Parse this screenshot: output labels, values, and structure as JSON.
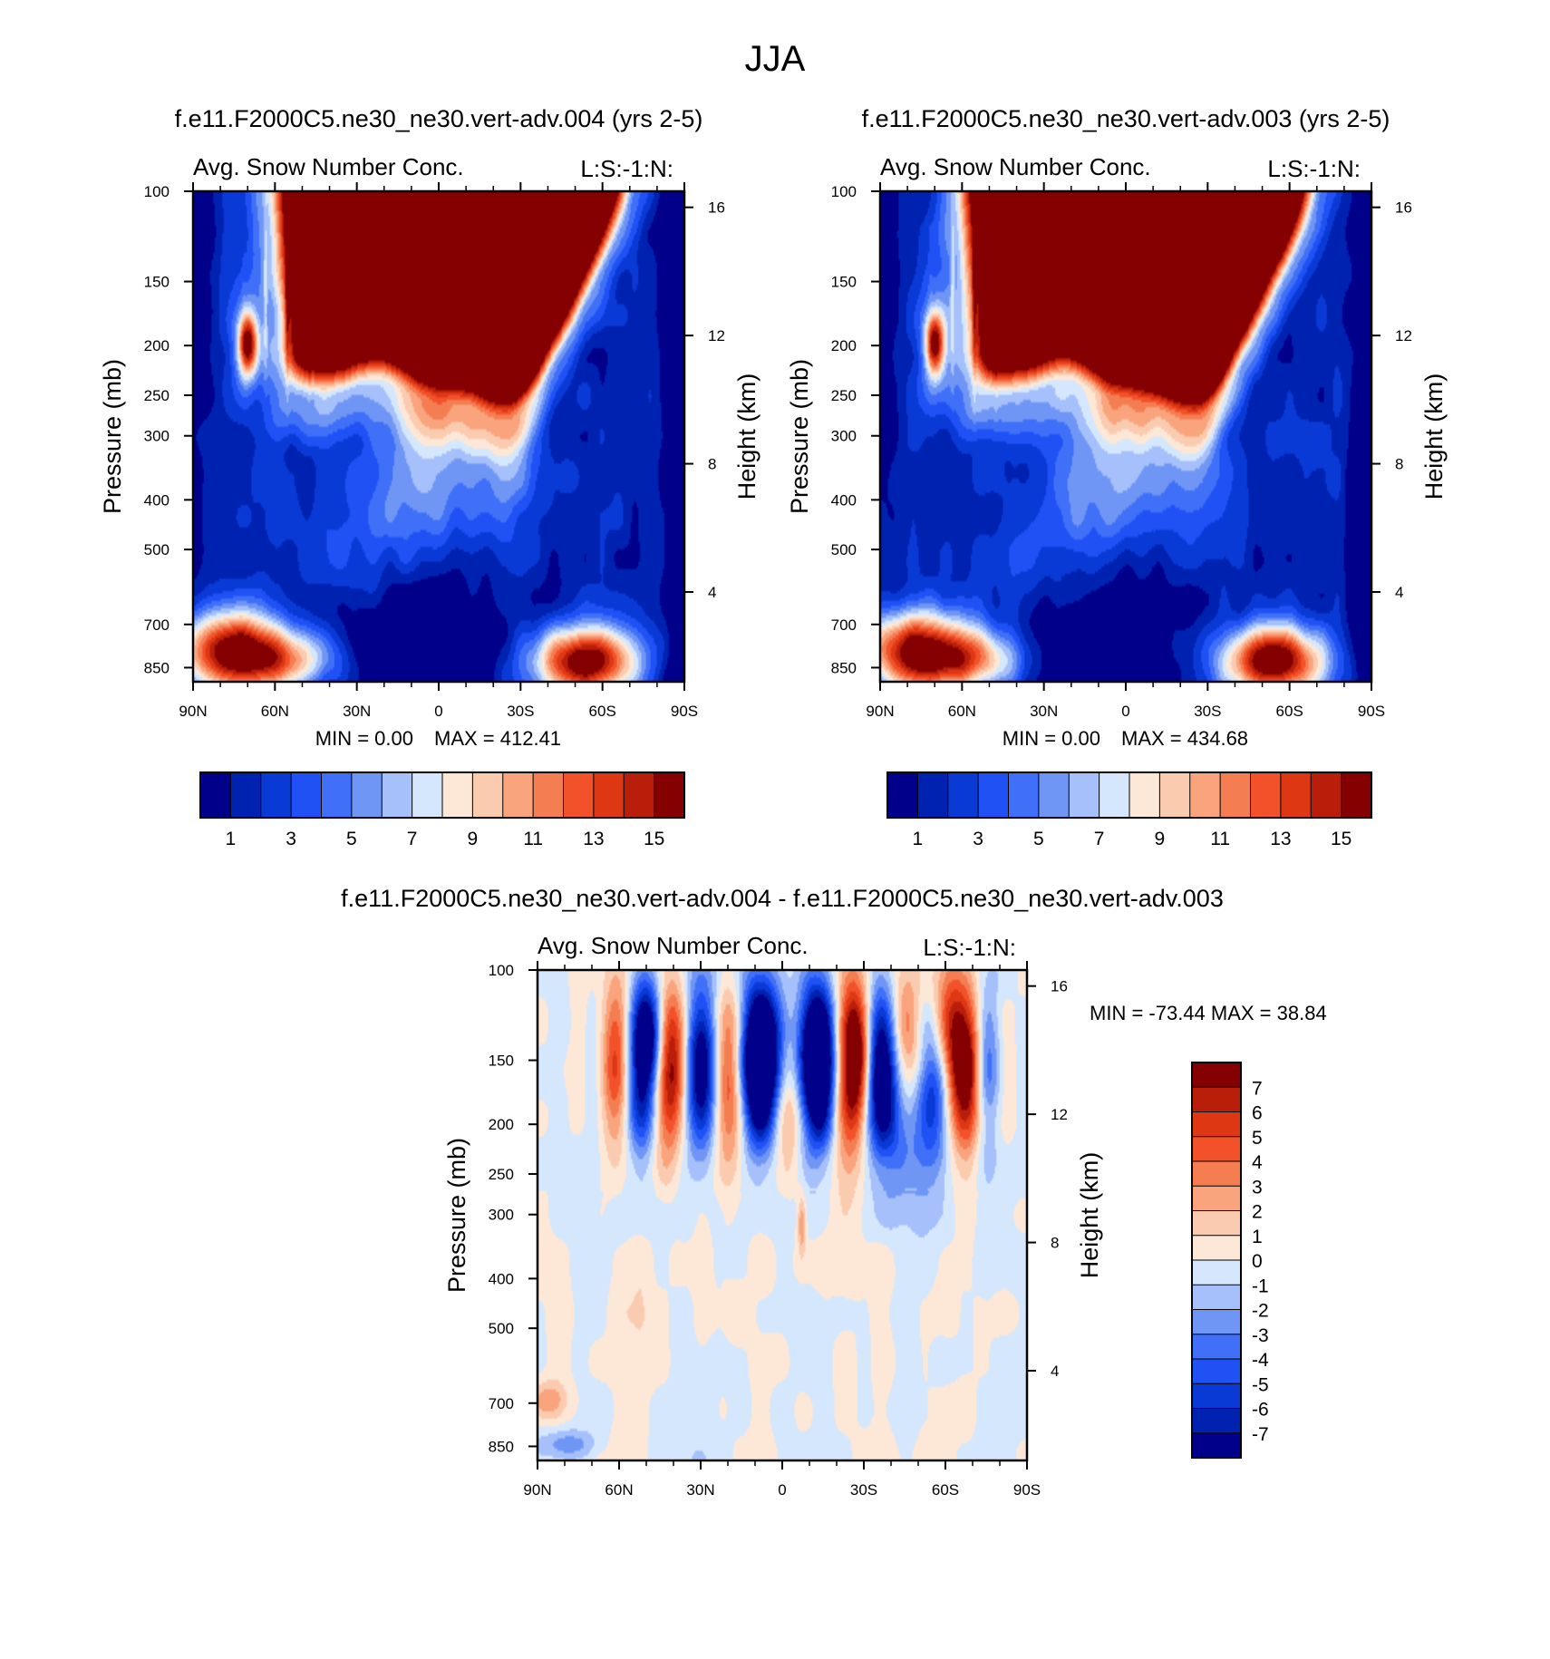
{
  "figure": {
    "season": "JJA"
  },
  "chart_data": [
    {
      "type": "heatmap",
      "case_title": "f.e11.F2000C5.ne30_ne30.vert-adv.004 (yrs 2-5)",
      "variable_title": "Avg. Snow Number Conc.",
      "units_label": "L:S:-1:N:",
      "x_ticks": [
        "90N",
        "60N",
        "30N",
        "0",
        "30S",
        "60S",
        "90S"
      ],
      "x_range": [
        90,
        -90
      ],
      "y_label": "Pressure (mb)",
      "y_ticks": [
        100,
        150,
        200,
        250,
        300,
        400,
        500,
        700,
        850
      ],
      "y_range": [
        100,
        1000
      ],
      "y2_label": "Height (km)",
      "y2_ticks": [
        16,
        12,
        8,
        4
      ],
      "min_label": "MIN =   0.00",
      "max_label": "MAX = 412.41",
      "colorbar_levels": [
        "1",
        "3",
        "5",
        "7",
        "9",
        "11",
        "13",
        "15"
      ],
      "colorbar_orientation": "horizontal"
    },
    {
      "type": "heatmap",
      "case_title": "f.e11.F2000C5.ne30_ne30.vert-adv.003 (yrs 2-5)",
      "variable_title": "Avg. Snow Number Conc.",
      "units_label": "L:S:-1:N:",
      "x_ticks": [
        "90N",
        "60N",
        "30N",
        "0",
        "30S",
        "60S",
        "90S"
      ],
      "x_range": [
        90,
        -90
      ],
      "y_label": "Pressure (mb)",
      "y_ticks": [
        100,
        150,
        200,
        250,
        300,
        400,
        500,
        700,
        850
      ],
      "y_range": [
        100,
        1000
      ],
      "y2_label": "Height (km)",
      "y2_ticks": [
        16,
        12,
        8,
        4
      ],
      "min_label": "MIN =   0.00",
      "max_label": "MAX = 434.68",
      "colorbar_levels": [
        "1",
        "3",
        "5",
        "7",
        "9",
        "11",
        "13",
        "15"
      ],
      "colorbar_orientation": "horizontal"
    },
    {
      "type": "heatmap",
      "case_title": "f.e11.F2000C5.ne30_ne30.vert-adv.004 - f.e11.F2000C5.ne30_ne30.vert-adv.003",
      "variable_title": "Avg. Snow Number Conc.",
      "units_label": "L:S:-1:N:",
      "x_ticks": [
        "90N",
        "60N",
        "30N",
        "0",
        "30S",
        "60S",
        "90S"
      ],
      "x_range": [
        90,
        -90
      ],
      "y_label": "Pressure (mb)",
      "y_ticks": [
        100,
        150,
        200,
        250,
        300,
        400,
        500,
        700,
        850
      ],
      "y_range": [
        100,
        1000
      ],
      "y2_label": "Height (km)",
      "y2_ticks": [
        16,
        12,
        8,
        4
      ],
      "min_label": "MIN = -73.44",
      "max_label": "MAX =  38.84",
      "colorbar_levels": [
        "7",
        "6",
        "5",
        "4",
        "3",
        "2",
        "1",
        "0",
        "-1",
        "-2",
        "-3",
        "-4",
        "-5",
        "-6",
        "-7"
      ],
      "colorbar_orientation": "vertical"
    }
  ],
  "colors": {
    "seq16": [
      "#00008a",
      "#0022b0",
      "#0a3ad6",
      "#1f51f5",
      "#3f70f7",
      "#7096f5",
      "#a5c0fa",
      "#d5e7fc",
      "#fde8d8",
      "#fbcbb0",
      "#f9a47d",
      "#f57d52",
      "#f2512a",
      "#dd3714",
      "#b91e0a",
      "#850000"
    ],
    "diff16": [
      "#00008a",
      "#0022b0",
      "#0a3ad6",
      "#1f51f5",
      "#3f70f7",
      "#7096f5",
      "#a5c0fa",
      "#d5e7fc",
      "#fde8d8",
      "#fbcbb0",
      "#f9a47d",
      "#f57d52",
      "#f2512a",
      "#dd3714",
      "#b91e0a",
      "#850000"
    ]
  }
}
